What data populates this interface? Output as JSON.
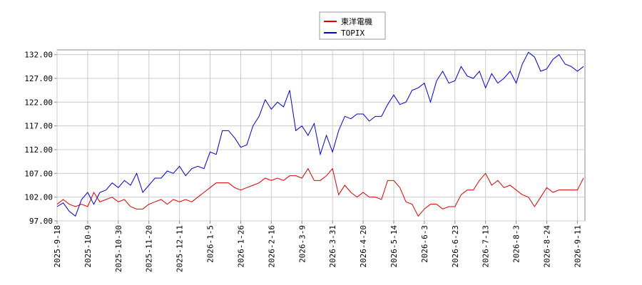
{
  "chart_data": {
    "type": "line",
    "categories": [
      "2025-9-18",
      null,
      null,
      null,
      null,
      "2025-10-9",
      null,
      null,
      null,
      null,
      "2025-10-30",
      null,
      null,
      null,
      null,
      "2025-11-20",
      null,
      null,
      null,
      null,
      "2025-12-11",
      null,
      null,
      null,
      null,
      "2026-1-5",
      null,
      null,
      null,
      null,
      "2026-1-26",
      null,
      null,
      null,
      null,
      "2026-2-16",
      null,
      null,
      null,
      null,
      "2026-3-9",
      null,
      null,
      null,
      null,
      "2026-3-31",
      null,
      null,
      null,
      null,
      "2026-4-20",
      null,
      null,
      null,
      null,
      "2026-5-14",
      null,
      null,
      null,
      null,
      "2026-6-3",
      null,
      null,
      null,
      null,
      "2026-6-23",
      null,
      null,
      null,
      null,
      "2026-7-13",
      null,
      null,
      null,
      null,
      "2026-8-3",
      null,
      null,
      null,
      null,
      "2026-8-24",
      null,
      null,
      null,
      null,
      "2026-9-11",
      null
    ],
    "series": [
      {
        "name": "東洋電機",
        "color": "#dd0000",
        "values": [
          100.5,
          101.5,
          100.5,
          100,
          100.5,
          100,
          103,
          101,
          101.5,
          102,
          101,
          101.5,
          100,
          99.5,
          99.5,
          100.5,
          101,
          101.5,
          100.5,
          101.5,
          101,
          101.5,
          101,
          102,
          103,
          104,
          105,
          105,
          105,
          104,
          103.5,
          104,
          104.5,
          105,
          106,
          105.5,
          106,
          105.5,
          106.5,
          106.5,
          106,
          108,
          105.5,
          105.5,
          106.5,
          108,
          102.5,
          104.5,
          103,
          102,
          103,
          102,
          102,
          101.5,
          105.5,
          105.5,
          104,
          101,
          100.5,
          98,
          99.5,
          100.5,
          100.5,
          99.5,
          100,
          100,
          102.5,
          103.5,
          103.5,
          105.5,
          107,
          104.5,
          105.5,
          104,
          104.5,
          103.5,
          102.5,
          102,
          100,
          102,
          104,
          103,
          103.5,
          103.5,
          103.5,
          103.5,
          106
        ]
      },
      {
        "name": "TOPIX",
        "color": "#0000cc",
        "values": [
          100,
          100.8,
          99,
          98,
          101.5,
          103,
          100.5,
          103,
          103.5,
          105,
          104,
          105.5,
          104.5,
          107,
          103,
          104.5,
          106,
          106,
          107.5,
          107,
          108.5,
          106.5,
          108,
          108.5,
          108,
          111.5,
          111,
          116,
          116,
          114.5,
          112.5,
          113,
          117,
          119,
          122.5,
          120.5,
          122,
          121,
          124.5,
          116,
          117,
          115,
          117.5,
          111,
          115,
          111.5,
          116,
          119,
          118.5,
          119.5,
          119.5,
          118,
          119,
          119,
          121.5,
          123.5,
          121.5,
          122,
          124.5,
          125,
          126,
          122,
          126.5,
          128.5,
          126,
          126.5,
          129.5,
          127.5,
          127,
          128.5,
          125,
          128,
          126,
          127,
          128.5,
          126,
          130,
          132.5,
          131.5,
          128.5,
          129,
          131,
          132,
          130,
          129.5,
          128.5,
          129.5
        ]
      }
    ],
    "ylim": [
      97,
      133
    ],
    "yticks": [
      {
        "value": 97,
        "label": "97.00"
      },
      {
        "value": 102,
        "label": "102.00"
      },
      {
        "value": 107,
        "label": "107.00"
      },
      {
        "value": 112,
        "label": "112.00"
      },
      {
        "value": 117,
        "label": "117.00"
      },
      {
        "value": 122,
        "label": "122.00"
      },
      {
        "value": 127,
        "label": "127.00"
      },
      {
        "value": 132,
        "label": "132.00"
      }
    ],
    "grid": true
  }
}
